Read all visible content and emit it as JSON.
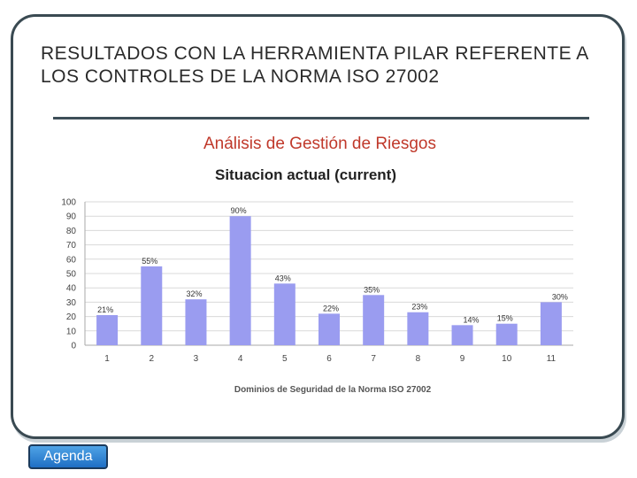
{
  "slide": {
    "title": "RESULTADOS CON LA HERRAMIENTA PILAR REFERENTE A LOS CONTROLES  DE LA NORMA ISO 27002",
    "agenda_label": "Agenda"
  },
  "chart_data": {
    "type": "bar",
    "title": "Análisis de Gestión de Riesgos",
    "subtitle": "Situacion actual (current)",
    "categories": [
      "1",
      "2",
      "3",
      "4",
      "5",
      "6",
      "7",
      "8",
      "9",
      "10",
      "11"
    ],
    "values": [
      21,
      55,
      32,
      90,
      43,
      22,
      35,
      23,
      14,
      15,
      30
    ],
    "data_labels": [
      "21%",
      "55%",
      "32%",
      "90%",
      "43%",
      "22%",
      "35%",
      "23%",
      "14%",
      "15%",
      "30%"
    ],
    "xlabel": "Dominios de Seguridad de la Norma ISO 27002",
    "ylabel": "",
    "ylim": [
      0,
      100
    ],
    "yticks": [
      "0",
      "10",
      "20",
      "30",
      "40",
      "50",
      "60",
      "70",
      "80",
      "90",
      "100"
    ],
    "grid": true,
    "bar_color": "#9a9cf0"
  }
}
